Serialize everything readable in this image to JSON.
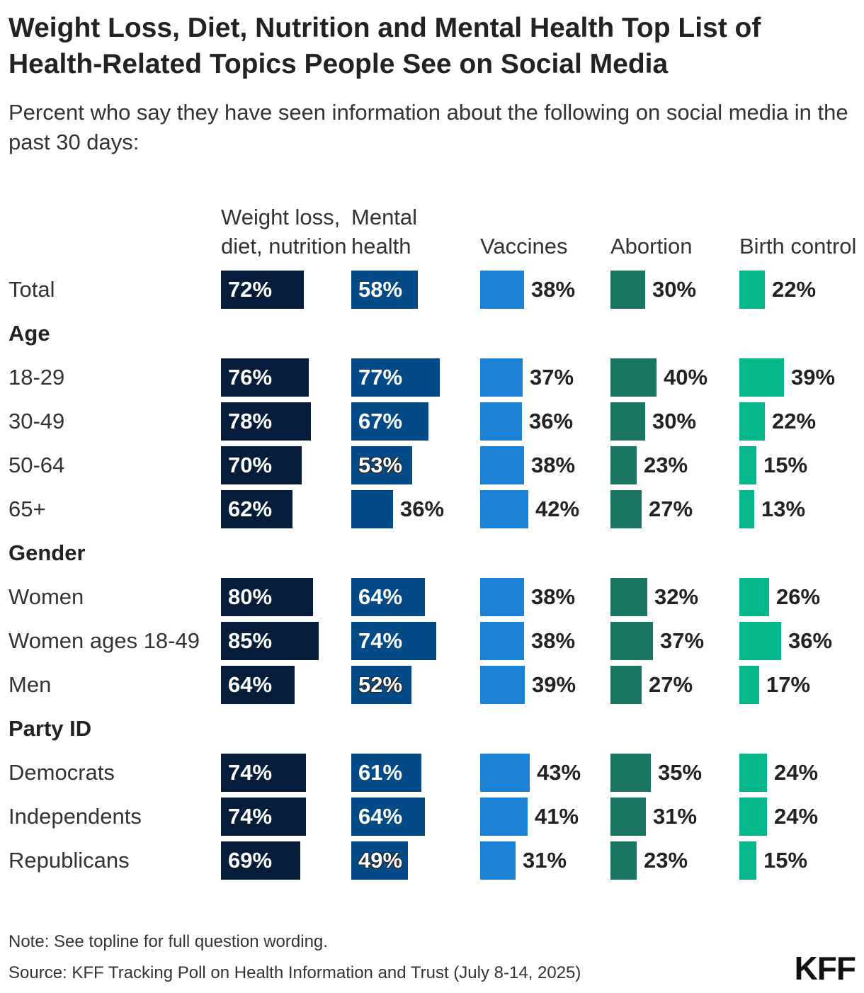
{
  "title": "Weight Loss, Diet, Nutrition and Mental Health Top List of Health-Related Topics People See on Social Media",
  "subtitle": "Percent who say they have seen information about the following on social media in the past 30 days:",
  "note": "Note: See topline for full question wording.",
  "source": "Source: KFF Tracking Poll on Health Information and Trust (July 8-14, 2025)",
  "logo": "KFF",
  "chart_data": {
    "type": "bar",
    "title": "Weight Loss, Diet, Nutrition and Mental Health Top List of Health-Related Topics People See on Social Media",
    "subtitle": "Percent who say they have seen information about the following on social media in the past 30 days:",
    "unit": "%",
    "xlim": [
      0,
      100
    ],
    "series": [
      {
        "name": "Weight loss, diet, nutrition",
        "header": "Weight loss, diet, nutrition",
        "color": "#051c3a"
      },
      {
        "name": "Mental health",
        "header": "Mental health",
        "color": "#034a87"
      },
      {
        "name": "Vaccines",
        "header": "Vaccines",
        "color": "#1c82d6"
      },
      {
        "name": "Abortion",
        "header": "Abortion",
        "color": "#1a7563"
      },
      {
        "name": "Birth control",
        "header": "Birth control",
        "color": "#06b78b"
      }
    ],
    "rows": [
      {
        "type": "row",
        "label": "Total",
        "values": [
          72,
          58,
          38,
          30,
          22
        ]
      },
      {
        "type": "group",
        "label": "Age"
      },
      {
        "type": "row",
        "label": "18-29",
        "values": [
          76,
          77,
          37,
          40,
          39
        ]
      },
      {
        "type": "row",
        "label": "30-49",
        "values": [
          78,
          67,
          36,
          30,
          22
        ]
      },
      {
        "type": "row",
        "label": "50-64",
        "values": [
          70,
          53,
          38,
          23,
          15
        ]
      },
      {
        "type": "row",
        "label": "65+",
        "values": [
          62,
          36,
          42,
          27,
          13
        ]
      },
      {
        "type": "group",
        "label": "Gender"
      },
      {
        "type": "row",
        "label": "Women",
        "values": [
          80,
          64,
          38,
          32,
          26
        ]
      },
      {
        "type": "row",
        "label": "Women ages 18-49",
        "values": [
          85,
          74,
          38,
          37,
          36
        ]
      },
      {
        "type": "row",
        "label": "Men",
        "values": [
          64,
          52,
          39,
          27,
          17
        ]
      },
      {
        "type": "group",
        "label": "Party ID"
      },
      {
        "type": "row",
        "label": "Democrats",
        "values": [
          74,
          61,
          43,
          35,
          24
        ]
      },
      {
        "type": "row",
        "label": "Independents",
        "values": [
          74,
          64,
          41,
          31,
          24
        ]
      },
      {
        "type": "row",
        "label": "Republicans",
        "values": [
          69,
          49,
          31,
          23,
          15
        ]
      }
    ]
  }
}
